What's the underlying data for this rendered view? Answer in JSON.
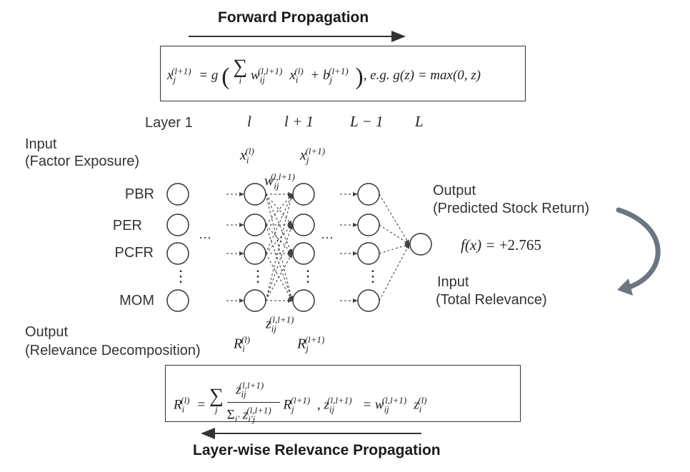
{
  "forward": {
    "title": "Forward Propagation",
    "formula_lhs": "x",
    "formula_lhs_sub": "j",
    "formula_lhs_sup": "(l+1)",
    "formula_eq": "= g",
    "formula_sum_sub": "i",
    "formula_w": "w",
    "formula_w_sub": "ij",
    "formula_w_sup": "(l,l+1)",
    "formula_x": "x",
    "formula_x_sub": "i",
    "formula_x_sup": "(l)",
    "formula_plus_b": "+ b",
    "formula_b_sub": "j",
    "formula_b_sup": "(l+1)",
    "formula_tail": ", e.g. g(z) = max(0, z)"
  },
  "layers": {
    "layer1": "Layer 1",
    "l": "l",
    "l_plus_1": "l + 1",
    "L_minus_1": "L − 1",
    "L": "L"
  },
  "node_labels": {
    "x_i": "x",
    "x_i_sub": "i",
    "x_i_sup": "(l)",
    "x_j": "x",
    "x_j_sub": "j",
    "x_j_sup": "(l+1)",
    "w": "w",
    "w_sub": "ij",
    "w_sup": "(l,l+1)",
    "z": "z",
    "z_sub": "ij",
    "z_sup": "(l,l+1)",
    "R_i": "R",
    "R_i_sub": "i",
    "R_i_sup": "(l)",
    "R_j": "R",
    "R_j_sub": "j",
    "R_j_sup": "(l+1)"
  },
  "left_input": {
    "line1": "Input",
    "line2": "(Factor Exposure)"
  },
  "left_output": {
    "line1": "Output",
    "line2": "(Relevance Decomposition)"
  },
  "features": [
    "PBR",
    "PER",
    "PCFR",
    "MOM"
  ],
  "ellipsis_h": "···",
  "ellipsis_v": "⋮",
  "right_output": {
    "line1": "Output",
    "line2": "(Predicted Stock Return)"
  },
  "right_input": {
    "line1": "Input",
    "line2": "(Total Relevance)"
  },
  "prediction": {
    "lhs": "f(x) =",
    "value": "+2.765"
  },
  "backward": {
    "title": "Layer-wise Relevance Propagation",
    "lhs": "R",
    "lhs_sub": "i",
    "lhs_sup": "(l)",
    "eq": "=",
    "sum_sub": "j",
    "num": "z",
    "num_sub": "ij",
    "num_sup": "(l,l+1)",
    "den_prefix": "Σ",
    "den_sub": "i′",
    "den_z": "z",
    "den_z_sub": "i′j",
    "den_z_sup": "(l,l+1)",
    "rj": "R",
    "rj_sub": "j",
    "rj_sup": "(l+1)",
    "tail_z": ", z",
    "tail_z_sub": "ij",
    "tail_z_sup": "(l,l+1)",
    "tail_eq": "= w",
    "tail_w_sub": "ij",
    "tail_w_sup": "(l,l+1)",
    "tail_z2": "z",
    "tail_z2_sub": "i",
    "tail_z2_sup": "(l)"
  },
  "colors": {
    "line": "#333333",
    "arrow_curve": "#6d7580"
  }
}
